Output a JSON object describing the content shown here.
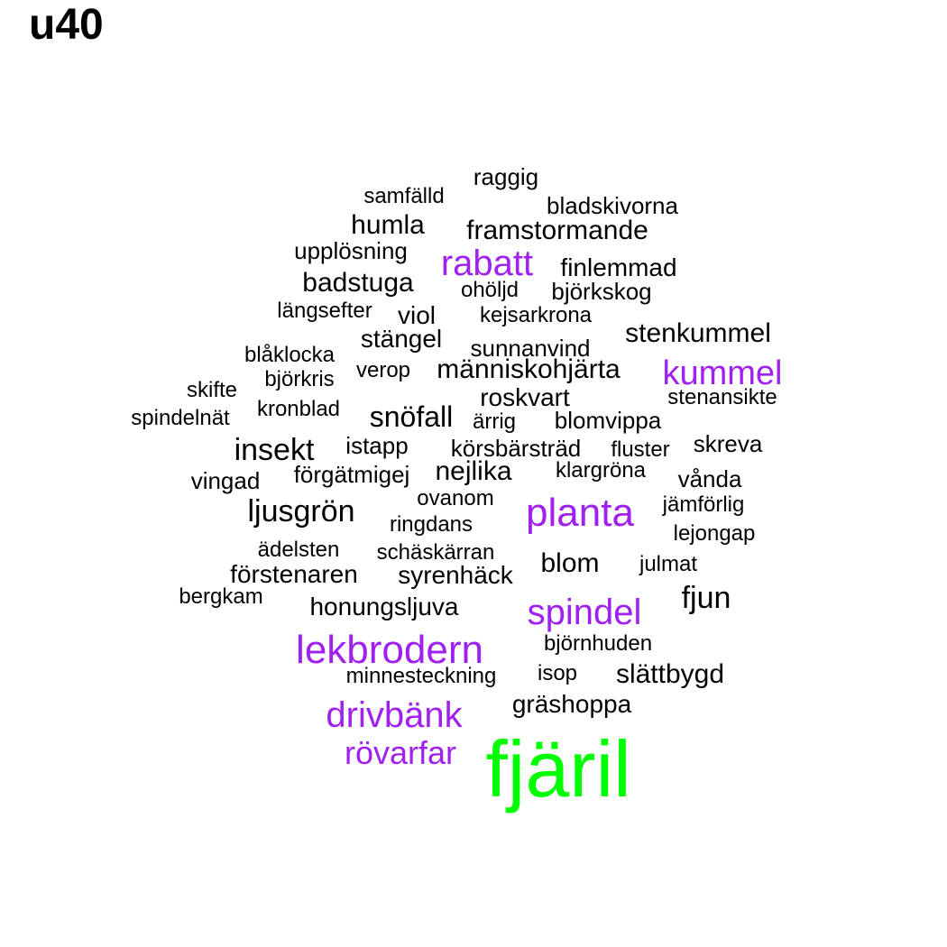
{
  "title": "u40",
  "colors": {
    "black": "#000000",
    "purple": "#a020f0",
    "green": "#00ff00"
  },
  "words": [
    {
      "text": "raggig",
      "color": "black"
    },
    {
      "text": "samfälld",
      "color": "black"
    },
    {
      "text": "bladskivorna",
      "color": "black"
    },
    {
      "text": "humla",
      "color": "black"
    },
    {
      "text": "framstormande",
      "color": "black"
    },
    {
      "text": "upplösning",
      "color": "black"
    },
    {
      "text": "rabatt",
      "color": "purple"
    },
    {
      "text": "finlemmad",
      "color": "black"
    },
    {
      "text": "badstuga",
      "color": "black"
    },
    {
      "text": "ohöljd",
      "color": "black"
    },
    {
      "text": "björkskog",
      "color": "black"
    },
    {
      "text": "längsefter",
      "color": "black"
    },
    {
      "text": "viol",
      "color": "black"
    },
    {
      "text": "kejsarkrona",
      "color": "black"
    },
    {
      "text": "stängel",
      "color": "black"
    },
    {
      "text": "stenkummel",
      "color": "black"
    },
    {
      "text": "sunnanvind",
      "color": "black"
    },
    {
      "text": "blåklocka",
      "color": "black"
    },
    {
      "text": "björkris",
      "color": "black"
    },
    {
      "text": "verop",
      "color": "black"
    },
    {
      "text": "människohjärta",
      "color": "black"
    },
    {
      "text": "kummel",
      "color": "purple"
    },
    {
      "text": "skifte",
      "color": "black"
    },
    {
      "text": "roskvart",
      "color": "black"
    },
    {
      "text": "stenansikte",
      "color": "black"
    },
    {
      "text": "spindelnät",
      "color": "black"
    },
    {
      "text": "kronblad",
      "color": "black"
    },
    {
      "text": "snöfall",
      "color": "black"
    },
    {
      "text": "ärrig",
      "color": "black"
    },
    {
      "text": "blomvippa",
      "color": "black"
    },
    {
      "text": "insekt",
      "color": "black"
    },
    {
      "text": "istapp",
      "color": "black"
    },
    {
      "text": "körsbärsträd",
      "color": "black"
    },
    {
      "text": "fluster",
      "color": "black"
    },
    {
      "text": "skreva",
      "color": "black"
    },
    {
      "text": "vingad",
      "color": "black"
    },
    {
      "text": "förgätmigej",
      "color": "black"
    },
    {
      "text": "nejlika",
      "color": "black"
    },
    {
      "text": "klargröna",
      "color": "black"
    },
    {
      "text": "vånda",
      "color": "black"
    },
    {
      "text": "ovanom",
      "color": "black"
    },
    {
      "text": "ljusgrön",
      "color": "black"
    },
    {
      "text": "planta",
      "color": "purple"
    },
    {
      "text": "jämförlig",
      "color": "black"
    },
    {
      "text": "ringdans",
      "color": "black"
    },
    {
      "text": "lejongap",
      "color": "black"
    },
    {
      "text": "ädelsten",
      "color": "black"
    },
    {
      "text": "schäskärran",
      "color": "black"
    },
    {
      "text": "blom",
      "color": "black"
    },
    {
      "text": "julmat",
      "color": "black"
    },
    {
      "text": "förstenaren",
      "color": "black"
    },
    {
      "text": "syrenhäck",
      "color": "black"
    },
    {
      "text": "bergkam",
      "color": "black"
    },
    {
      "text": "fjun",
      "color": "black"
    },
    {
      "text": "honungsljuva",
      "color": "black"
    },
    {
      "text": "spindel",
      "color": "purple"
    },
    {
      "text": "lekbrodern",
      "color": "purple"
    },
    {
      "text": "björnhuden",
      "color": "black"
    },
    {
      "text": "minnesteckning",
      "color": "black"
    },
    {
      "text": "isop",
      "color": "black"
    },
    {
      "text": "slättbygd",
      "color": "black"
    },
    {
      "text": "gräshoppa",
      "color": "black"
    },
    {
      "text": "drivbänk",
      "color": "purple"
    },
    {
      "text": "rövarfar",
      "color": "purple"
    },
    {
      "text": "fjäril",
      "color": "green"
    }
  ]
}
